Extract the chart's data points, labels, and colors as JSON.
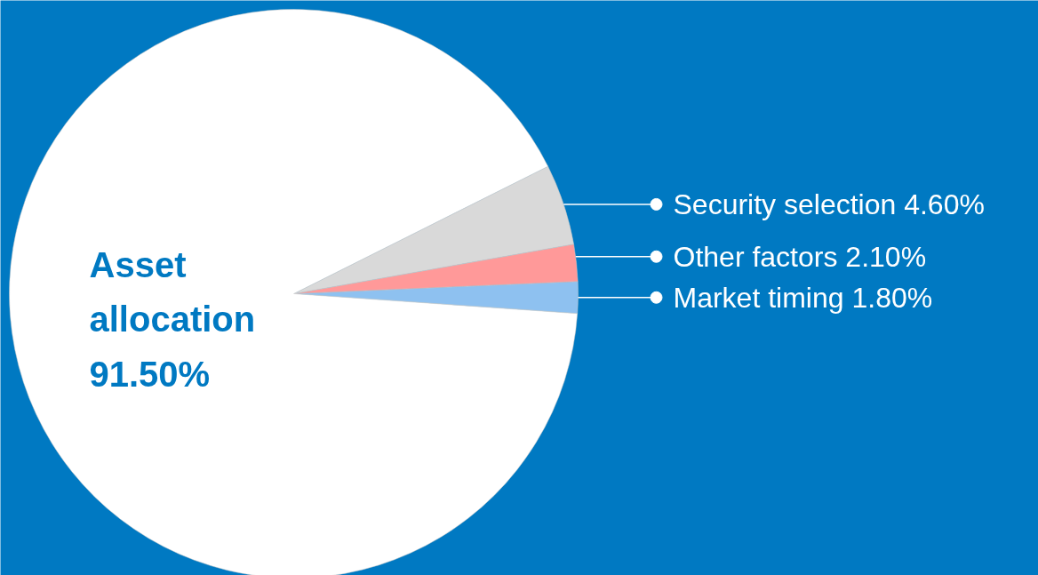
{
  "chart_data": {
    "type": "pie",
    "categories": [
      "Market timing",
      "Other factors",
      "Security selection",
      "Asset allocation"
    ],
    "values": [
      1.8,
      2.1,
      4.6,
      91.5
    ],
    "colors": [
      "#8ec1f0",
      "#ff9999",
      "#d9d9d9",
      "#ffffff"
    ],
    "value_labels": [
      "1.80%",
      "2.10%",
      "4.60%",
      "91.50%"
    ]
  }
}
